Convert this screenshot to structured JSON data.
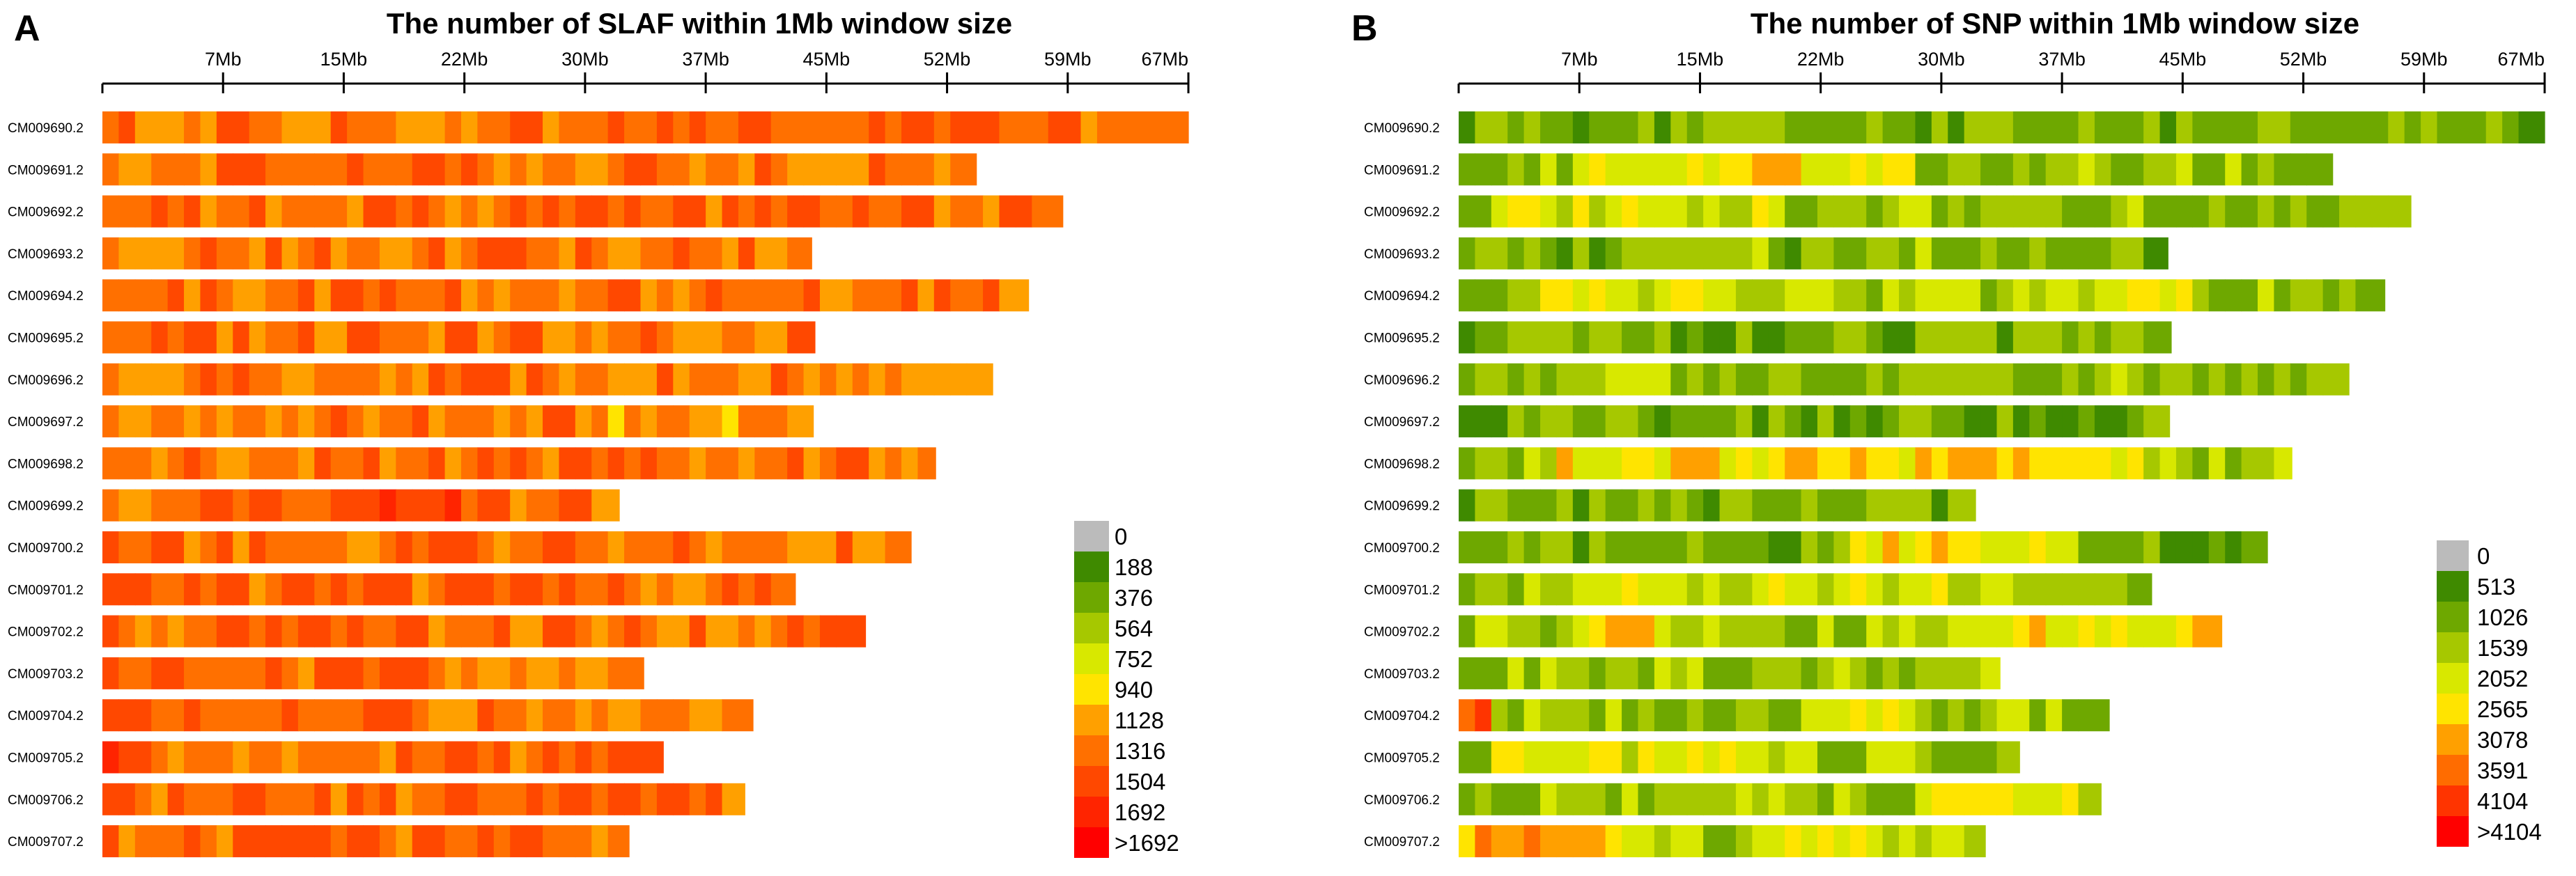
{
  "chart_data": [
    {
      "panel": "A",
      "type": "heatmap",
      "title": "The number of SLAF within 1Mb window size",
      "x_ticks": [
        "7Mb",
        "15Mb",
        "22Mb",
        "30Mb",
        "37Mb",
        "45Mb",
        "52Mb",
        "59Mb",
        "67Mb"
      ],
      "x_tick_values": [
        7.4,
        14.8,
        22.2,
        29.6,
        37.0,
        44.4,
        51.8,
        59.2,
        66.6
      ],
      "xlim": [
        0,
        66.6
      ],
      "legend": {
        "labels": [
          "0",
          "188",
          "376",
          "564",
          "752",
          "940",
          "1128",
          "1316",
          "1504",
          "1692",
          ">1692"
        ],
        "colors": [
          "#bbbbbb",
          "#3f8a00",
          "#6ea800",
          "#a6c800",
          "#d8e800",
          "#ffe400",
          "#ffa000",
          "#ff7000",
          "#ff4800",
          "#ff2400",
          "#ff0000"
        ]
      },
      "chromosomes": [
        {
          "name": "CM009690.2",
          "length_mb": 66.6,
          "base": 6.9,
          "hot": [
            [
              25,
              40,
              7.3
            ],
            [
              45,
              60,
              7.5
            ]
          ]
        },
        {
          "name": "CM009691.2",
          "length_mb": 53.6,
          "base": 6.7,
          "hot": [
            [
              5,
              30,
              7.3
            ]
          ]
        },
        {
          "name": "CM009692.2",
          "length_mb": 58.9,
          "base": 6.9,
          "hot": [
            [
              25,
              50,
              7.4
            ],
            [
              55,
              58,
              8.0
            ]
          ]
        },
        {
          "name": "CM009693.2",
          "length_mb": 43.5,
          "base": 6.7,
          "hot": [
            [
              0,
              17,
              7.1
            ],
            [
              22,
              30,
              7.3
            ]
          ]
        },
        {
          "name": "CM009694.2",
          "length_mb": 56.8,
          "base": 7.0,
          "hot": [
            [
              14,
              22,
              7.4
            ],
            [
              40,
              56,
              7.3
            ]
          ]
        },
        {
          "name": "CM009695.2",
          "length_mb": 43.7,
          "base": 6.8,
          "hot": [
            [
              15,
              35,
              7.3
            ]
          ]
        },
        {
          "name": "CM009696.2",
          "length_mb": 54.6,
          "base": 6.7,
          "hot": [
            [
              5,
              30,
              7.3
            ]
          ]
        },
        {
          "name": "CM009697.2",
          "length_mb": 43.6,
          "base": 6.5,
          "hot": [
            [
              10,
              30,
              7.0
            ]
          ]
        },
        {
          "name": "CM009698.2",
          "length_mb": 51.1,
          "base": 6.7,
          "hot": [
            [
              20,
              40,
              7.1
            ]
          ]
        },
        {
          "name": "CM009699.2",
          "length_mb": 31.7,
          "base": 6.9,
          "hot": [
            [
              3,
              20,
              7.4
            ],
            [
              17,
              24,
              8.0
            ]
          ]
        },
        {
          "name": "CM009700.2",
          "length_mb": 49.6,
          "base": 6.6,
          "hot": [
            [
              0,
              30,
              7.0
            ]
          ]
        },
        {
          "name": "CM009701.2",
          "length_mb": 42.5,
          "base": 6.9,
          "hot": [
            [
              0,
              30,
              7.3
            ]
          ]
        },
        {
          "name": "CM009702.2",
          "length_mb": 46.8,
          "base": 6.9,
          "hot": [
            [
              0,
              30,
              7.3
            ]
          ]
        },
        {
          "name": "CM009703.2",
          "length_mb": 33.2,
          "base": 6.8,
          "hot": [
            [
              0,
              20,
              7.2
            ]
          ]
        },
        {
          "name": "CM009704.2",
          "length_mb": 39.9,
          "base": 6.8,
          "hot": [
            [
              0,
              20,
              7.4
            ]
          ]
        },
        {
          "name": "CM009705.2",
          "length_mb": 34.4,
          "base": 6.8,
          "hot": [
            [
              0,
              3,
              8.5
            ],
            [
              5,
              20,
              7.2
            ]
          ]
        },
        {
          "name": "CM009706.2",
          "length_mb": 39.4,
          "base": 7.0,
          "hot": [
            [
              0,
              35,
              7.4
            ]
          ]
        },
        {
          "name": "CM009707.2",
          "length_mb": 32.3,
          "base": 6.8,
          "hot": [
            [
              5,
              20,
              7.2
            ]
          ]
        }
      ]
    },
    {
      "panel": "B",
      "type": "heatmap",
      "title": "The number of SNP within 1Mb window size",
      "x_ticks": [
        "7Mb",
        "15Mb",
        "22Mb",
        "30Mb",
        "37Mb",
        "45Mb",
        "52Mb",
        "59Mb",
        "67Mb"
      ],
      "x_tick_values": [
        7.4,
        14.8,
        22.2,
        29.6,
        37.0,
        44.4,
        51.8,
        59.2,
        66.6
      ],
      "xlim": [
        0,
        66.6
      ],
      "legend": {
        "labels": [
          "0",
          "513",
          "1026",
          "1539",
          "2052",
          "2565",
          "3078",
          "3591",
          "4104",
          ">4104"
        ],
        "colors": [
          "#bbbbbb",
          "#3f8a00",
          "#6ea800",
          "#a6c800",
          "#d8e800",
          "#ffe400",
          "#ffa000",
          "#ff6c00",
          "#ff3400",
          "#ff0000"
        ]
      },
      "chromosomes": [
        {
          "name": "CM009690.2",
          "length_mb": 66.6,
          "base": 2.4,
          "hot": []
        },
        {
          "name": "CM009691.2",
          "length_mb": 53.6,
          "base": 2.6,
          "hot": [
            [
              8,
              28,
              5.0
            ]
          ]
        },
        {
          "name": "CM009692.2",
          "length_mb": 58.4,
          "base": 2.6,
          "hot": [
            [
              2,
              20,
              4.0
            ]
          ]
        },
        {
          "name": "CM009693.2",
          "length_mb": 43.5,
          "base": 2.5,
          "hot": []
        },
        {
          "name": "CM009694.2",
          "length_mb": 56.8,
          "base": 2.7,
          "hot": [
            [
              4,
              24,
              3.8
            ],
            [
              40,
              46,
              4.0
            ]
          ]
        },
        {
          "name": "CM009695.2",
          "length_mb": 43.7,
          "base": 2.3,
          "hot": []
        },
        {
          "name": "CM009696.2",
          "length_mb": 54.6,
          "base": 2.7,
          "hot": []
        },
        {
          "name": "CM009697.2",
          "length_mb": 43.6,
          "base": 2.2,
          "hot": []
        },
        {
          "name": "CM009698.2",
          "length_mb": 51.1,
          "base": 3.0,
          "hot": [
            [
              6,
              42,
              5.0
            ]
          ]
        },
        {
          "name": "CM009699.2",
          "length_mb": 31.7,
          "base": 2.2,
          "hot": []
        },
        {
          "name": "CM009700.2",
          "length_mb": 49.6,
          "base": 2.4,
          "hot": [
            [
              24,
              38,
              4.8
            ]
          ]
        },
        {
          "name": "CM009701.2",
          "length_mb": 42.5,
          "base": 2.7,
          "hot": [
            [
              8,
              34,
              3.9
            ]
          ]
        },
        {
          "name": "CM009702.2",
          "length_mb": 46.8,
          "base": 2.9,
          "hot": [
            [
              8,
              12,
              5.5
            ],
            [
              32,
              46,
              4.5
            ]
          ]
        },
        {
          "name": "CM009703.2",
          "length_mb": 33.2,
          "base": 2.6,
          "hot": []
        },
        {
          "name": "CM009704.2",
          "length_mb": 39.9,
          "base": 2.8,
          "hot": [
            [
              0,
              2,
              8.0
            ],
            [
              22,
              28,
              4.2
            ]
          ]
        },
        {
          "name": "CM009705.2",
          "length_mb": 34.4,
          "base": 3.0,
          "hot": [
            [
              2,
              20,
              4.2
            ]
          ]
        },
        {
          "name": "CM009706.2",
          "length_mb": 39.4,
          "base": 2.9,
          "hot": [
            [
              28,
              38,
              4.2
            ]
          ]
        },
        {
          "name": "CM009707.2",
          "length_mb": 32.3,
          "base": 3.4,
          "hot": [
            [
              0,
              10,
              6.0
            ],
            [
              20,
              25,
              4.2
            ]
          ]
        }
      ]
    }
  ]
}
